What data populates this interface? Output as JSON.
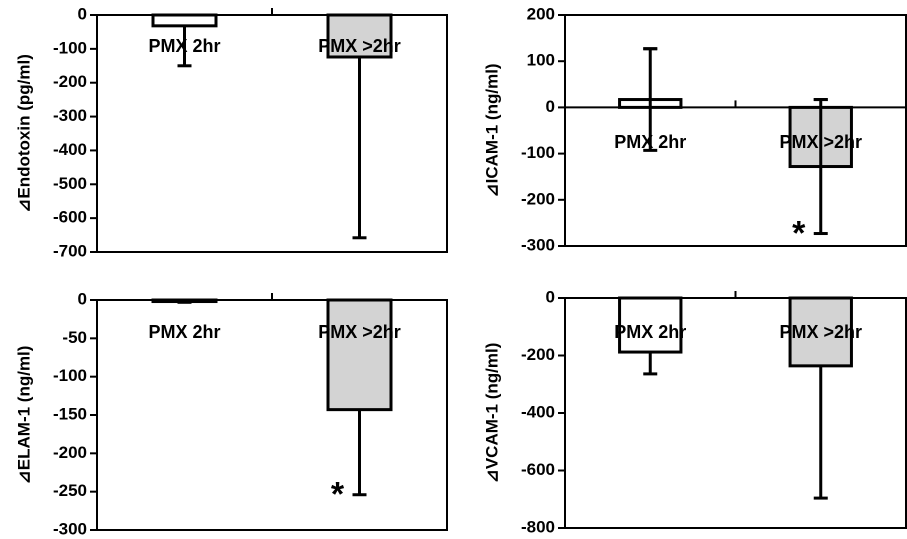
{
  "chart_data": [
    {
      "type": "bar",
      "y_label": "⊿Endotoxin (pg/ml)",
      "categories": [
        "PMX 2hr",
        "PMX >2hr"
      ],
      "series": [
        {
          "values": [
            -32,
            -124
          ],
          "errors": [
            118,
            534
          ]
        }
      ],
      "colors": [
        "#ffffff",
        "#d3d3d3"
      ],
      "error_direction": "outward",
      "ylim": [
        -700,
        0
      ],
      "yticks": [
        0,
        -100,
        -200,
        -300,
        -400,
        -500,
        -600,
        -700
      ],
      "annotations": []
    },
    {
      "type": "bar",
      "y_label": "⊿ICAM-1 (ng/ml)",
      "categories": [
        "PMX 2hr",
        "PMX >2hr"
      ],
      "series": [
        {
          "values": [
            17,
            -128
          ],
          "errors": [
            110,
            145
          ]
        }
      ],
      "colors": [
        "#ffffff",
        "#d3d3d3"
      ],
      "error_direction": "both",
      "ylim": [
        -300,
        200
      ],
      "yticks": [
        200,
        100,
        0,
        -100,
        -200,
        -300
      ],
      "annotations": [
        {
          "text": "*",
          "category": 1
        }
      ]
    },
    {
      "type": "bar",
      "y_label": "⊿ELAM-1 (ng/ml)",
      "categories": [
        "PMX 2hr",
        "PMX >2hr"
      ],
      "series": [
        {
          "values": [
            -2,
            -143
          ],
          "errors": [
            1,
            111
          ]
        }
      ],
      "colors": [
        "#ffffff",
        "#d3d3d3"
      ],
      "error_direction": "outward",
      "ylim": [
        -300,
        0
      ],
      "yticks": [
        0,
        -50,
        -100,
        -150,
        -200,
        -250,
        -300
      ],
      "annotations": [
        {
          "text": "*",
          "category": 1
        }
      ]
    },
    {
      "type": "bar",
      "y_label": "⊿VCAM-1 (ng/ml)",
      "categories": [
        "PMX 2hr",
        "PMX >2hr"
      ],
      "series": [
        {
          "values": [
            -188,
            -236
          ],
          "errors": [
            76,
            460
          ]
        }
      ],
      "colors": [
        "#ffffff",
        "#d3d3d3"
      ],
      "error_direction": "outward",
      "ylim": [
        -800,
        0
      ],
      "yticks": [
        0,
        -200,
        -400,
        -600,
        -800
      ],
      "annotations": []
    }
  ]
}
